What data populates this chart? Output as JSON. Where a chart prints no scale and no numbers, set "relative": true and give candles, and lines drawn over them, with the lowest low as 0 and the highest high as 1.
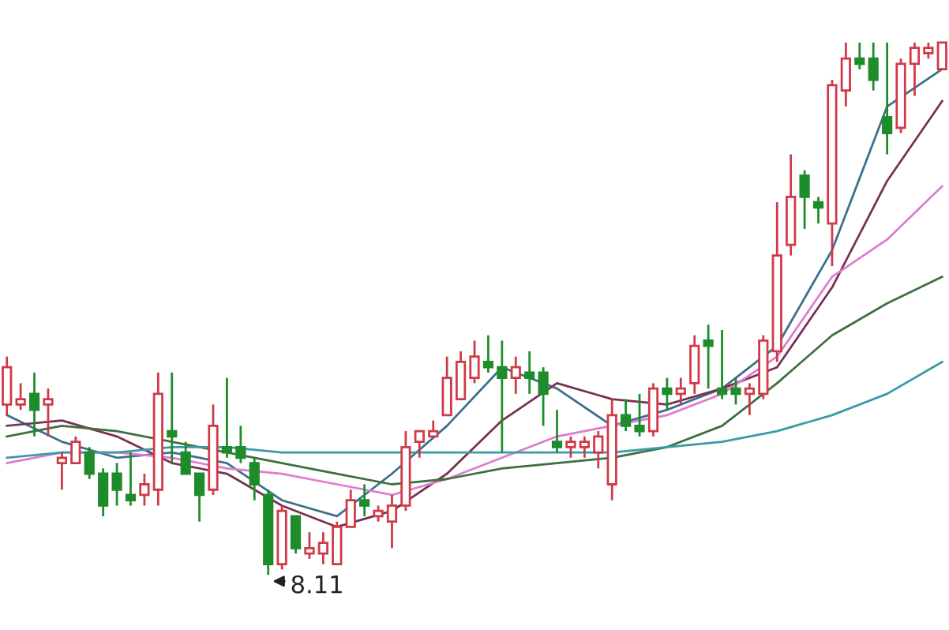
{
  "chart_data": {
    "type": "candlestick",
    "relative": true,
    "categories": [
      null,
      null,
      null,
      null,
      null,
      null,
      null,
      null,
      null,
      null,
      null,
      null,
      null,
      null,
      null,
      null,
      null,
      null,
      null,
      null,
      null,
      null,
      null,
      null,
      null,
      null,
      null,
      null,
      null,
      null,
      null,
      null,
      null,
      null,
      null,
      null,
      null,
      null,
      null,
      null,
      null,
      null,
      null,
      null,
      null,
      null,
      null,
      null,
      null,
      null,
      null,
      null,
      null,
      null,
      null,
      null,
      null,
      null,
      null,
      null,
      null,
      null,
      null,
      null,
      null,
      null,
      null,
      null,
      null
    ],
    "ohlc": [
      [
        0.32,
        0.41,
        0.3,
        0.39
      ],
      [
        0.32,
        0.36,
        0.31,
        0.33
      ],
      [
        0.34,
        0.38,
        0.26,
        0.31
      ],
      [
        0.32,
        0.35,
        0.26,
        0.33
      ],
      [
        0.21,
        0.23,
        0.16,
        0.22
      ],
      [
        0.21,
        0.26,
        0.21,
        0.25
      ],
      [
        0.23,
        0.24,
        0.18,
        0.19
      ],
      [
        0.19,
        0.2,
        0.11,
        0.13
      ],
      [
        0.19,
        0.21,
        0.13,
        0.16
      ],
      [
        0.15,
        0.23,
        0.13,
        0.14
      ],
      [
        0.15,
        0.19,
        0.13,
        0.17
      ],
      [
        0.16,
        0.38,
        0.13,
        0.34
      ],
      [
        0.27,
        0.38,
        0.21,
        0.26
      ],
      [
        0.23,
        0.25,
        0.19,
        0.19
      ],
      [
        0.19,
        0.19,
        0.1,
        0.15
      ],
      [
        0.16,
        0.32,
        0.15,
        0.28
      ],
      [
        0.24,
        0.37,
        0.22,
        0.23
      ],
      [
        0.24,
        0.28,
        0.21,
        0.22
      ],
      [
        0.21,
        0.22,
        0.14,
        0.17
      ],
      [
        0.15,
        0.16,
        0,
        0.02
      ],
      [
        0.02,
        0.13,
        0.01,
        0.12
      ],
      [
        0.11,
        0.11,
        0.04,
        0.05
      ],
      [
        0.04,
        0.08,
        0.03,
        0.05
      ],
      [
        0.04,
        0.08,
        0.02,
        0.06
      ],
      [
        0.02,
        0.1,
        0.02,
        0.09
      ],
      [
        0.09,
        0.16,
        0.09,
        0.14
      ],
      [
        0.14,
        0.17,
        0.11,
        0.13
      ],
      [
        0.11,
        0.13,
        0.1,
        0.12
      ],
      [
        0.1,
        0.15,
        0.05,
        0.13
      ],
      [
        0.13,
        0.27,
        0.12,
        0.24
      ],
      [
        0.25,
        0.27,
        0.22,
        0.27
      ],
      [
        0.26,
        0.29,
        0.26,
        0.27
      ],
      [
        0.3,
        0.41,
        0.3,
        0.37
      ],
      [
        0.33,
        0.42,
        0.33,
        0.4
      ],
      [
        0.37,
        0.44,
        0.36,
        0.41
      ],
      [
        0.4,
        0.45,
        0.38,
        0.39
      ],
      [
        0.39,
        0.44,
        0.23,
        0.37
      ],
      [
        0.37,
        0.41,
        0.34,
        0.39
      ],
      [
        0.38,
        0.42,
        0.34,
        0.37
      ],
      [
        0.38,
        0.39,
        0.28,
        0.34
      ],
      [
        0.25,
        0.31,
        0.23,
        0.24
      ],
      [
        0.24,
        0.26,
        0.22,
        0.25
      ],
      [
        0.24,
        0.26,
        0.22,
        0.25
      ],
      [
        0.23,
        0.27,
        0.2,
        0.26
      ],
      [
        0.17,
        0.33,
        0.14,
        0.3
      ],
      [
        0.3,
        0.33,
        0.27,
        0.28
      ],
      [
        0.28,
        0.34,
        0.26,
        0.27
      ],
      [
        0.27,
        0.36,
        0.26,
        0.35
      ],
      [
        0.35,
        0.37,
        0.31,
        0.34
      ],
      [
        0.34,
        0.37,
        0.32,
        0.35
      ],
      [
        0.36,
        0.45,
        0.34,
        0.43
      ],
      [
        0.44,
        0.47,
        0.35,
        0.43
      ],
      [
        0.35,
        0.46,
        0.33,
        0.34
      ],
      [
        0.35,
        0.37,
        0.32,
        0.34
      ],
      [
        0.34,
        0.36,
        0.3,
        0.35
      ],
      [
        0.34,
        0.45,
        0.33,
        0.44
      ],
      [
        0.42,
        0.7,
        0.4,
        0.6
      ],
      [
        0.62,
        0.79,
        0.6,
        0.71
      ],
      [
        0.75,
        0.76,
        0.65,
        0.71
      ],
      [
        0.7,
        0.71,
        0.66,
        0.69
      ],
      [
        0.66,
        0.93,
        0.58,
        0.92
      ],
      [
        0.91,
        1,
        0.88,
        0.97
      ],
      [
        0.97,
        1,
        0.95,
        0.96
      ],
      [
        0.97,
        1,
        0.91,
        0.93
      ],
      [
        0.86,
        1,
        0.79,
        0.83
      ],
      [
        0.84,
        0.97,
        0.83,
        0.96
      ],
      [
        0.96,
        1,
        0.9,
        0.99
      ],
      [
        0.98,
        1,
        0.97,
        0.99
      ],
      [
        0.95,
        1,
        0.95,
        1
      ]
    ],
    "colors": [
      "#d03a48",
      "#d03a48",
      "#1e8c2a",
      "#d03a48",
      "#d03a48",
      "#d03a48",
      "#1e8c2a",
      "#1e8c2a",
      "#1e8c2a",
      "#1e8c2a",
      "#d03a48",
      "#d03a48",
      "#1e8c2a",
      "#1e8c2a",
      "#1e8c2a",
      "#d03a48",
      "#1e8c2a",
      "#1e8c2a",
      "#1e8c2a",
      "#1e8c2a",
      "#d03a48",
      "#1e8c2a",
      "#d03a48",
      "#d03a48",
      "#d03a48",
      "#d03a48",
      "#1e8c2a",
      "#d03a48",
      "#d03a48",
      "#d03a48",
      "#d03a48",
      "#d03a48",
      "#d03a48",
      "#d03a48",
      "#d03a48",
      "#1e8c2a",
      "#1e8c2a",
      "#d03a48",
      "#1e8c2a",
      "#1e8c2a",
      "#1e8c2a",
      "#d03a48",
      "#d03a48",
      "#d03a48",
      "#d03a48",
      "#1e8c2a",
      "#1e8c2a",
      "#d03a48",
      "#1e8c2a",
      "#d03a48",
      "#d03a48",
      "#1e8c2a",
      "#1e8c2a",
      "#1e8c2a",
      "#d03a48",
      "#d03a48",
      "#d03a48",
      "#d03a48",
      "#1e8c2a",
      "#1e8c2a",
      "#d03a48",
      "#d03a48",
      "#1e8c2a",
      "#1e8c2a",
      "#1e8c2a",
      "#d03a48",
      "#d03a48",
      "#d03a48",
      "#d03a48"
    ],
    "series": [
      {
        "type": "line",
        "color": "#3d6f8c",
        "values": [
          0.3,
          null,
          null,
          null,
          0.25,
          null,
          null,
          null,
          0.22,
          null,
          null,
          null,
          0.23,
          null,
          null,
          null,
          0.21,
          null,
          null,
          null,
          0.14,
          null,
          null,
          null,
          0.11,
          null,
          null,
          null,
          0.19,
          null,
          null,
          null,
          0.28,
          null,
          null,
          null,
          0.39,
          null,
          null,
          null,
          0.35,
          null,
          null,
          null,
          0.28,
          null,
          null,
          null,
          0.31,
          null,
          null,
          null,
          0.35,
          null,
          null,
          null,
          0.43,
          null,
          null,
          null,
          0.61,
          null,
          null,
          null,
          0.88,
          null,
          null,
          null,
          0.95
        ]
      },
      {
        "type": "line",
        "color": "#7a3052",
        "values": [
          0.28,
          null,
          null,
          null,
          0.29,
          null,
          null,
          null,
          0.26,
          null,
          null,
          null,
          0.21,
          null,
          null,
          null,
          0.19,
          null,
          null,
          null,
          0.13,
          null,
          null,
          null,
          0.09,
          null,
          null,
          null,
          0.12,
          null,
          null,
          null,
          0.19,
          null,
          null,
          null,
          0.29,
          null,
          null,
          null,
          0.36,
          null,
          null,
          null,
          0.33,
          null,
          null,
          null,
          0.32,
          null,
          null,
          null,
          0.35,
          null,
          null,
          null,
          0.39,
          null,
          null,
          null,
          0.54,
          null,
          null,
          null,
          0.74,
          null,
          null,
          null,
          0.89
        ]
      },
      {
        "type": "line",
        "color": "#e07ccf",
        "values": [
          0.21,
          null,
          null,
          null,
          0.23,
          null,
          null,
          null,
          0.23,
          null,
          null,
          null,
          0.22,
          null,
          null,
          null,
          0.2,
          null,
          null,
          null,
          0.19,
          null,
          null,
          null,
          0.17,
          null,
          null,
          null,
          0.15,
          null,
          null,
          null,
          0.18,
          null,
          null,
          null,
          0.22,
          null,
          null,
          null,
          0.26,
          null,
          null,
          null,
          0.28,
          null,
          null,
          null,
          0.3,
          null,
          null,
          null,
          0.34,
          null,
          null,
          null,
          0.41,
          null,
          null,
          null,
          0.56,
          null,
          null,
          null,
          0.63,
          null,
          null,
          null,
          0.73
        ]
      },
      {
        "type": "line",
        "color": "#3f6f40",
        "values": [
          0.26,
          null,
          null,
          null,
          0.28,
          null,
          null,
          null,
          0.27,
          null,
          null,
          null,
          0.25,
          null,
          null,
          null,
          0.23,
          null,
          null,
          null,
          0.21,
          null,
          null,
          null,
          0.19,
          null,
          null,
          null,
          0.17,
          null,
          null,
          null,
          0.18,
          null,
          null,
          null,
          0.2,
          null,
          null,
          null,
          0.21,
          null,
          null,
          null,
          0.22,
          null,
          null,
          null,
          0.24,
          null,
          null,
          null,
          0.28,
          null,
          null,
          null,
          0.36,
          null,
          null,
          null,
          0.45,
          null,
          null,
          null,
          0.51,
          null,
          null,
          null,
          0.56
        ]
      },
      {
        "type": "line",
        "color": "#3a9aa8",
        "values": [
          0.22,
          null,
          null,
          null,
          0.23,
          null,
          null,
          null,
          0.23,
          null,
          null,
          null,
          0.24,
          null,
          null,
          null,
          0.24,
          null,
          null,
          null,
          0.23,
          null,
          null,
          null,
          0.23,
          null,
          null,
          null,
          0.23,
          null,
          null,
          null,
          0.23,
          null,
          null,
          null,
          0.23,
          null,
          null,
          null,
          0.23,
          null,
          null,
          null,
          0.23,
          null,
          null,
          null,
          0.24,
          null,
          null,
          null,
          0.25,
          null,
          null,
          null,
          0.27,
          null,
          null,
          null,
          0.3,
          null,
          null,
          null,
          0.34,
          null,
          null,
          null,
          0.4
        ]
      }
    ],
    "annotations": [
      "8.11"
    ]
  }
}
